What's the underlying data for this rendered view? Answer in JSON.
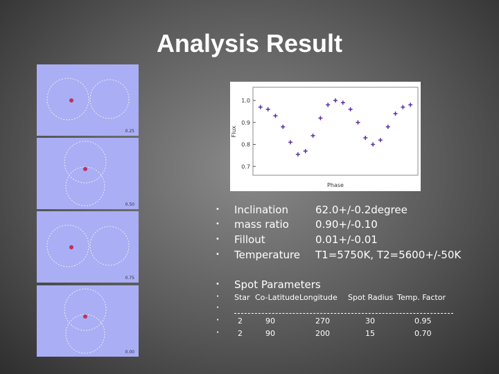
{
  "slide": {
    "title": "Analysis Result",
    "phase_panels": [
      "0.25",
      "0.50",
      "0.75",
      "0.00"
    ],
    "light_curve": {
      "type": "scatter",
      "x_label": "Phase",
      "y_label": "Flux",
      "color": "#5a2ea0",
      "xlim": [
        -0.05,
        1.05
      ],
      "ylim": [
        0.66,
        1.06
      ],
      "yticks": [
        {
          "value": 1,
          "label": "1.0"
        },
        0.9,
        0.8,
        0.7
      ],
      "x": [
        0,
        0.05,
        0.1,
        0.15,
        0.2,
        0.25,
        0.3,
        0.35,
        0.4,
        0.45,
        0.5,
        0.55,
        0.6,
        0.65,
        0.7,
        0.75,
        0.8,
        0.85,
        0.9,
        0.95,
        1.0
      ],
      "values": [
        0.97,
        0.96,
        0.93,
        0.88,
        0.81,
        0.755,
        0.77,
        0.84,
        0.92,
        0.98,
        1.0,
        0.99,
        0.96,
        0.9,
        0.83,
        0.8,
        0.82,
        0.88,
        0.94,
        0.97,
        0.98
      ]
    },
    "parameters": [
      {
        "label": "Inclination",
        "value": "62.0+/-0.2degree"
      },
      {
        "label": "mass ratio",
        "value": "0.90+/-0.10"
      },
      {
        "label": "Fillout",
        "value": "0.01+/-0.01"
      },
      {
        "label": "Temperature",
        "value": "T1=5750K, T2=5600+/-50K"
      }
    ],
    "spot_title": "Spot Parameters",
    "spot_table": {
      "columns": [
        "Star",
        "Co-Latitude",
        "Longitude",
        "Spot Radius",
        "Temp. Factor"
      ],
      "rows": [
        [
          "2",
          "90",
          "270",
          "30",
          "0.95"
        ],
        [
          "2",
          "90",
          "200",
          "15",
          "0.70"
        ]
      ]
    }
  }
}
